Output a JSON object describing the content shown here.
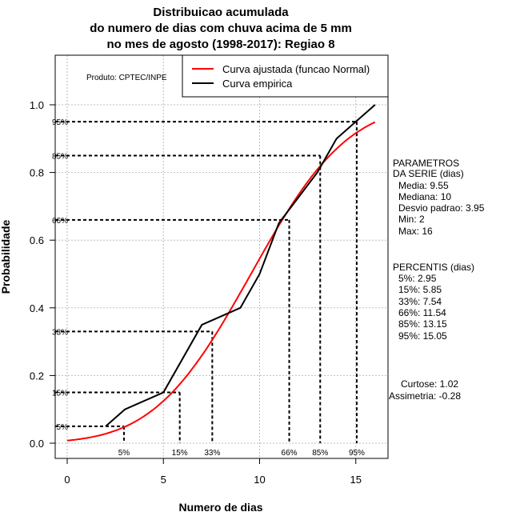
{
  "chart_data": {
    "type": "line",
    "title": [
      "Distribuicao acumulada",
      "do numero de dias com chuva acima de 5 mm",
      "no mes de agosto (1998-2017): Regiao 8"
    ],
    "xlabel": "Numero de dias",
    "ylabel": "Probabilidade",
    "xlim": [
      -0.7,
      16.7
    ],
    "ylim": [
      -0.045,
      1.15
    ],
    "xticks": [
      0,
      5,
      10,
      15
    ],
    "yticks": [
      0.0,
      0.2,
      0.4,
      0.6,
      0.8,
      1.0
    ],
    "xtick_labels": [
      "0",
      "5",
      "10",
      "15"
    ],
    "ytick_labels": [
      "0.0",
      "0.2",
      "0.4",
      "0.6",
      "0.8",
      "1.0"
    ],
    "grid": true,
    "legend": {
      "placement": "top-right",
      "entries": [
        "Curva ajustada (funcao Normal)",
        "Curva empirica"
      ]
    },
    "product_note": "Produto: CPTEC/INPE",
    "colors": {
      "fitted": "#ff0000",
      "empirical": "#000000"
    },
    "series": [
      {
        "name": "Curva ajustada (funcao Normal)",
        "distribution": "normal",
        "mean": 9.55,
        "sd": 3.95,
        "x_range": [
          0,
          16
        ]
      },
      {
        "name": "Curva empirica",
        "x": [
          2,
          3,
          5,
          7,
          9,
          10,
          11,
          13,
          14,
          16
        ],
        "y": [
          0.05,
          0.1,
          0.15,
          0.35,
          0.4,
          0.5,
          0.65,
          0.8,
          0.9,
          1.0
        ]
      }
    ],
    "percentiles": [
      {
        "label": "5%",
        "p": 0.05,
        "x": 2.95
      },
      {
        "label": "15%",
        "p": 0.15,
        "x": 5.85
      },
      {
        "label": "33%",
        "p": 0.33,
        "x": 7.54
      },
      {
        "label": "66%",
        "p": 0.66,
        "x": 11.54
      },
      {
        "label": "85%",
        "p": 0.85,
        "x": 13.15
      },
      {
        "label": "95%",
        "p": 0.95,
        "x": 15.05
      }
    ]
  },
  "side_panel": {
    "params_title": [
      "PARAMETROS",
      "DA SERIE (dias)"
    ],
    "params": [
      "Media: 9.55",
      "Mediana: 10",
      "Desvio padrao: 3.95",
      "Min: 2",
      "Max: 16"
    ],
    "perc_title": "PERCENTIS (dias)",
    "percs": [
      "5%: 2.95",
      "15%: 5.85",
      "33%: 7.54",
      "66%: 11.54",
      "85%: 13.15",
      "95%: 15.05"
    ],
    "stats": [
      "Curtose: 1.02",
      "Assimetria: -0.28"
    ]
  }
}
